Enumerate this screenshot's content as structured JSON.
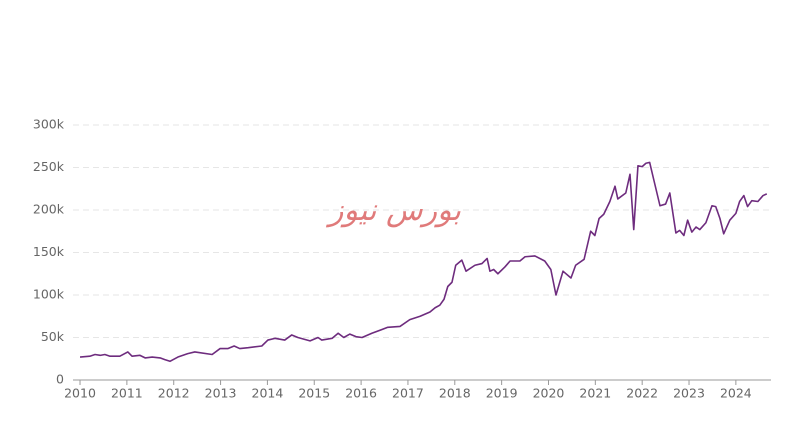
{
  "chart_data": {
    "type": "line",
    "annotation": "بورس نیوز",
    "x": [
      2010,
      2010.21,
      2010.32,
      2010.43,
      2010.53,
      2010.64,
      2010.85,
      2011.02,
      2011.11,
      2011.28,
      2011.39,
      2011.54,
      2011.71,
      2011.81,
      2011.92,
      2012.09,
      2012.3,
      2012.45,
      2012.82,
      2012.99,
      2013.16,
      2013.29,
      2013.41,
      2013.59,
      2013.88,
      2014.01,
      2014.16,
      2014.37,
      2014.52,
      2014.65,
      2014.91,
      2015.08,
      2015.16,
      2015.38,
      2015.51,
      2015.63,
      2015.76,
      2015.89,
      2016.02,
      2016.23,
      2016.57,
      2016.83,
      2017.04,
      2017.26,
      2017.47,
      2017.58,
      2017.68,
      2017.77,
      2017.85,
      2017.94,
      2018.02,
      2018.15,
      2018.24,
      2018.43,
      2018.58,
      2018.69,
      2018.75,
      2018.83,
      2018.92,
      2019.07,
      2019.18,
      2019.39,
      2019.5,
      2019.71,
      2019.92,
      2020.05,
      2020.16,
      2020.31,
      2020.48,
      2020.58,
      2020.76,
      2020.9,
      2020.99,
      2021.08,
      2021.18,
      2021.31,
      2021.42,
      2021.48,
      2021.65,
      2021.74,
      2021.82,
      2021.91,
      2022,
      2022.08,
      2022.16,
      2022.25,
      2022.38,
      2022.5,
      2022.59,
      2022.72,
      2022.8,
      2022.89,
      2022.97,
      2023.06,
      2023.15,
      2023.23,
      2023.36,
      2023.49,
      2023.57,
      2023.66,
      2023.74,
      2023.87,
      2024,
      2024.08,
      2024.17,
      2024.25,
      2024.34,
      2024.47,
      2024.58,
      2024.66
    ],
    "series": [
      {
        "color": "#6e2c7e",
        "values": [
          27000,
          28000,
          30000,
          29000,
          30000,
          28000,
          28000,
          33000,
          28000,
          29000,
          26000,
          27000,
          26000,
          24000,
          22000,
          27000,
          31000,
          33000,
          30000,
          37000,
          37000,
          40000,
          37000,
          38000,
          40000,
          47000,
          49000,
          47000,
          53000,
          50000,
          46000,
          50000,
          47000,
          49000,
          55000,
          50000,
          54000,
          51000,
          50000,
          55000,
          62000,
          63000,
          71000,
          75000,
          80000,
          85000,
          88000,
          95000,
          110000,
          115000,
          135000,
          141000,
          128000,
          135000,
          137000,
          143000,
          128000,
          130000,
          125000,
          133000,
          140000,
          140000,
          145000,
          146000,
          140000,
          130000,
          100000,
          128000,
          120000,
          135000,
          142000,
          175000,
          170000,
          190000,
          195000,
          210000,
          228000,
          213000,
          220000,
          242000,
          177000,
          252000,
          251000,
          255000,
          256000,
          235000,
          205000,
          207000,
          220000,
          173000,
          176000,
          170000,
          188000,
          174000,
          180000,
          177000,
          185000,
          205000,
          204000,
          190000,
          172000,
          188000,
          196000,
          210000,
          217000,
          204000,
          211000,
          210000,
          217000,
          219000
        ]
      }
    ],
    "xlim": [
      2009.85,
      2024.75
    ],
    "xticks": [
      2010,
      2011,
      2012,
      2013,
      2014,
      2015,
      2016,
      2017,
      2018,
      2019,
      2020,
      2021,
      2022,
      2023,
      2024
    ],
    "ylim": [
      0,
      300000
    ],
    "yticks": [
      0,
      {
        "value": 50000,
        "label": "50k"
      },
      {
        "value": 100000,
        "label": "100k"
      },
      {
        "value": 150000,
        "label": "150k"
      },
      {
        "value": 200000,
        "label": "200k"
      },
      {
        "value": 250000,
        "label": "250k"
      },
      {
        "value": 300000,
        "label": "300k"
      }
    ],
    "grid": true
  }
}
